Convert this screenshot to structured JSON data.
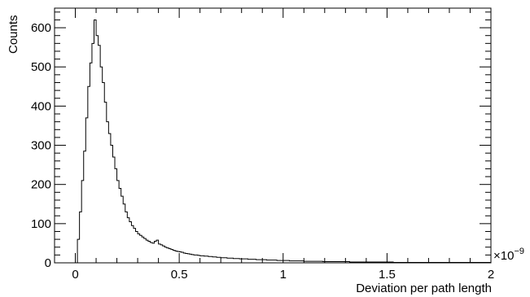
{
  "chart_data": {
    "type": "histogram",
    "xlabel": "Deviation per path length",
    "ylabel": "Counts",
    "x_exponent_label": "×10",
    "x_exponent_power": "−9",
    "xlim": [
      -0.1,
      2.0
    ],
    "ylim": [
      0,
      650
    ],
    "x_ticks": [
      0,
      0.5,
      1,
      1.5,
      2
    ],
    "x_tick_labels": [
      "0",
      "0.5",
      "1",
      "1.5",
      "2"
    ],
    "y_ticks": [
      0,
      100,
      200,
      300,
      400,
      500,
      600
    ],
    "y_tick_labels": [
      "0",
      "100",
      "200",
      "300",
      "400",
      "500",
      "600"
    ],
    "bin_start": 0.0,
    "bin_width": 0.01,
    "counts": [
      0,
      60,
      130,
      210,
      285,
      370,
      450,
      510,
      560,
      620,
      580,
      555,
      500,
      460,
      410,
      360,
      330,
      300,
      270,
      240,
      210,
      190,
      170,
      150,
      130,
      115,
      105,
      95,
      88,
      80,
      74,
      70,
      66,
      62,
      58,
      55,
      52,
      50,
      55,
      58,
      48,
      46,
      43,
      40,
      38,
      36,
      34,
      32,
      30,
      29,
      28,
      27,
      25,
      24,
      23,
      22,
      21,
      20,
      20,
      19,
      18,
      18,
      17,
      17,
      16,
      16,
      15,
      15,
      14,
      14,
      13,
      13,
      13,
      12,
      12,
      12,
      11,
      11,
      11,
      10,
      10,
      10,
      10,
      9,
      9,
      9,
      9,
      8,
      8,
      8,
      8,
      8,
      7,
      7,
      7,
      7,
      7,
      6,
      6,
      6,
      6,
      6,
      6,
      5,
      5,
      5,
      5,
      5,
      5,
      5,
      4,
      4,
      4,
      4,
      4,
      4,
      4,
      4,
      4,
      3,
      3,
      3,
      3,
      3,
      3,
      3,
      3,
      3,
      3,
      3,
      3,
      3,
      2,
      2,
      2,
      2,
      2,
      2,
      2,
      2,
      2,
      2,
      2,
      2,
      2,
      2,
      2,
      2,
      2,
      2,
      2,
      2,
      2,
      1,
      1,
      1,
      1,
      1,
      1,
      1,
      1,
      1,
      1,
      1,
      1,
      1,
      1,
      1,
      1,
      1,
      1,
      1,
      1,
      1,
      1,
      1,
      1,
      1,
      1,
      1,
      1,
      1,
      1,
      1,
      1,
      1,
      1,
      1,
      1,
      1,
      1,
      1,
      1,
      1,
      1,
      1,
      1,
      1,
      1,
      1
    ]
  }
}
